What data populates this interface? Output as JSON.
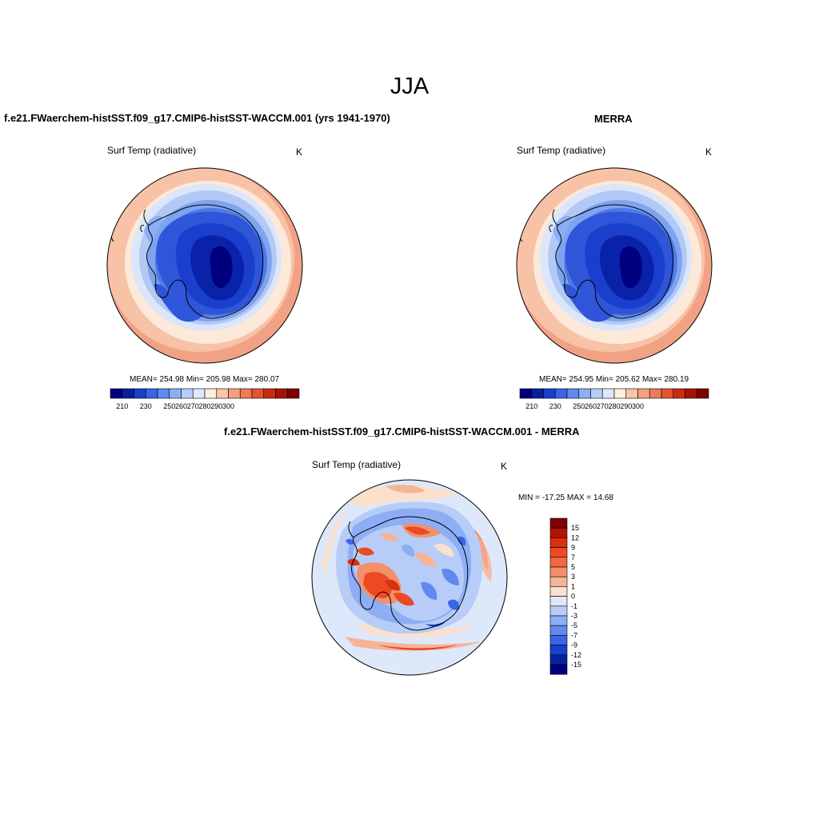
{
  "figure": {
    "season": "JJA"
  },
  "panel_model": {
    "title": "f.e21.FWaerchem-histSST.f09_g17.CMIP6-histSST-WACCM.001 (yrs 1941-1970)",
    "variable": "Surf Temp (radiative)",
    "units": "K",
    "stats": "MEAN= 254.98  Min= 205.98  Max= 280.07"
  },
  "panel_obs": {
    "title": "MERRA",
    "variable": "Surf Temp (radiative)",
    "units": "K",
    "stats": "MEAN= 254.95  Min= 205.62  Max= 280.19"
  },
  "panel_diff": {
    "title": "f.e21.FWaerchem-histSST.f09_g17.CMIP6-histSST-WACCM.001 - MERRA",
    "variable": "Surf Temp (radiative)",
    "units": "K",
    "stats": "MIN = -17.25 MAX =  14.68"
  },
  "colorbar_abs": {
    "tick_labels": [
      "210",
      "230",
      "250",
      "260",
      "270",
      "280",
      "290",
      "300"
    ],
    "colors": [
      "#00007f",
      "#0a1fa0",
      "#1a3fcc",
      "#3b65e6",
      "#6189ef",
      "#8daef5",
      "#b7cdf8",
      "#dde8fb",
      "#fdeedd",
      "#f8c5a8",
      "#f2a07f",
      "#ec7b58",
      "#e45430",
      "#cc2a12",
      "#a81206",
      "#7f0000"
    ]
  },
  "colorbar_diff": {
    "tick_labels": [
      "15",
      "12",
      "9",
      "7",
      "5",
      "3",
      "1",
      "0",
      "-1",
      "-3",
      "-5",
      "-7",
      "-9",
      "-12",
      "-15"
    ],
    "colors": [
      "#7f0000",
      "#b31305",
      "#d92f10",
      "#eb4a22",
      "#f06a40",
      "#f3906a",
      "#f6b496",
      "#fbe0cc",
      "#dde8fb",
      "#b7cdf8",
      "#8daef5",
      "#6189ef",
      "#3b65e6",
      "#1a3fcc",
      "#0a1fa0",
      "#00007f"
    ]
  },
  "chart_data": [
    {
      "type": "heatmap",
      "title": "f.e21.FWaerchem-histSST.f09_g17.CMIP6-histSST-WACCM.001 (yrs 1941-1970)",
      "subtitle": "Surf Temp (radiative)",
      "units": "K",
      "projection": "south polar stereographic",
      "colorbar_ticks": [
        210,
        230,
        250,
        260,
        270,
        280,
        290,
        300
      ],
      "mean": 254.98,
      "min": 205.98,
      "max": 280.07,
      "field": "cold (~210-230 K) over East Antarctic interior, ~240-255 K over Antarctic coast/sea ice, ~265-280 K over surrounding ocean"
    },
    {
      "type": "heatmap",
      "title": "MERRA",
      "subtitle": "Surf Temp (radiative)",
      "units": "K",
      "projection": "south polar stereographic",
      "colorbar_ticks": [
        210,
        230,
        250,
        260,
        270,
        280,
        290,
        300
      ],
      "mean": 254.95,
      "min": 205.62,
      "max": 280.19,
      "field": "cold (~210-230 K) over East Antarctic interior, ~240-255 K over Antarctic coast/sea ice, ~265-280 K over surrounding ocean"
    },
    {
      "type": "heatmap",
      "title": "f.e21.FWaerchem-histSST.f09_g17.CMIP6-histSST-WACCM.001 - MERRA",
      "subtitle": "Surf Temp (radiative)",
      "units": "K",
      "projection": "south polar stereographic",
      "colorbar_ticks": [
        15,
        12,
        9,
        7,
        5,
        3,
        1,
        0,
        -1,
        -3,
        -5,
        -7,
        -9,
        -12,
        -15
      ],
      "min": -17.25,
      "max": 14.68,
      "field": "warm anomalies (+5 to +12 K) over West Antarctica/Ross Sea and sea-ice margins, cool anomalies (-3 to -9 K) over East Antarctic plateau and Southern Ocean patches"
    }
  ]
}
